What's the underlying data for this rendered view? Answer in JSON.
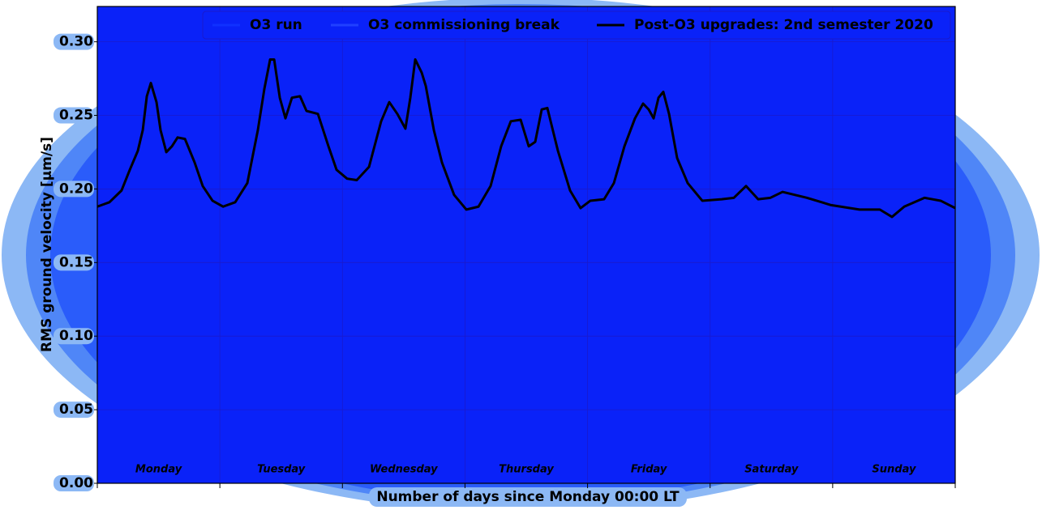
{
  "chart_data": {
    "type": "line",
    "xlabel": "Number of days since Monday 00:00 LT",
    "ylabel": "RMS ground velocity [μm/s]",
    "xlim": [
      0,
      7
    ],
    "ylim": [
      0,
      0.324
    ],
    "xticks": [
      0,
      1,
      2,
      3,
      4,
      5,
      6,
      7
    ],
    "yticks": [
      {
        "value": 0,
        "label": "0.00"
      },
      {
        "value": 0.05,
        "label": "0.05"
      },
      {
        "value": 0.1,
        "label": "0.10"
      },
      {
        "value": 0.15,
        "label": "0.15"
      },
      {
        "value": 0.2,
        "label": "0.20"
      },
      {
        "value": 0.25,
        "label": "0.25"
      },
      {
        "value": 0.3,
        "label": "0.30"
      }
    ],
    "grid": true,
    "day_labels": [
      "Monday",
      "Tuesday",
      "Wednesday",
      "Thursday",
      "Friday",
      "Saturday",
      "Sunday"
    ],
    "x": [
      0,
      0.099,
      0.198,
      0.265,
      0.331,
      0.371,
      0.404,
      0.437,
      0.483,
      0.516,
      0.563,
      0.609,
      0.655,
      0.715,
      0.794,
      0.86,
      0.94,
      1.026,
      1.125,
      1.224,
      1.31,
      1.363,
      1.41,
      1.443,
      1.489,
      1.535,
      1.588,
      1.654,
      1.707,
      1.8,
      1.886,
      1.952,
      2.038,
      2.117,
      2.217,
      2.316,
      2.382,
      2.448,
      2.514,
      2.554,
      2.594,
      2.647,
      2.68,
      2.746,
      2.812,
      2.911,
      3.011,
      3.11,
      3.209,
      3.295,
      3.374,
      3.454,
      3.52,
      3.573,
      3.626,
      3.672,
      3.758,
      3.857,
      3.943,
      4.023,
      4.135,
      4.215,
      4.301,
      4.387,
      4.453,
      4.499,
      4.539,
      4.579,
      4.618,
      4.665,
      4.731,
      4.817,
      4.936,
      5.095,
      5.194,
      5.293,
      5.392,
      5.492,
      5.591,
      5.789,
      5.988,
      6.219,
      6.385,
      6.484,
      6.584,
      6.749,
      6.881,
      7
    ],
    "series": [
      {
        "name": "O3 run",
        "color": "#1030ff"
      },
      {
        "name": "O3 commissioning break",
        "color": "#2040ff"
      },
      {
        "name": "Post-O3 upgrades: 2nd semester 2020",
        "color": "#000000",
        "values": [
          0.188,
          0.191,
          0.199,
          0.213,
          0.226,
          0.24,
          0.263,
          0.272,
          0.259,
          0.24,
          0.225,
          0.229,
          0.235,
          0.234,
          0.218,
          0.202,
          0.192,
          0.188,
          0.191,
          0.204,
          0.24,
          0.268,
          0.288,
          0.288,
          0.262,
          0.248,
          0.262,
          0.263,
          0.253,
          0.251,
          0.229,
          0.213,
          0.207,
          0.206,
          0.215,
          0.246,
          0.259,
          0.251,
          0.241,
          0.262,
          0.288,
          0.279,
          0.27,
          0.24,
          0.218,
          0.196,
          0.186,
          0.188,
          0.202,
          0.229,
          0.246,
          0.247,
          0.229,
          0.232,
          0.254,
          0.255,
          0.226,
          0.199,
          0.187,
          0.192,
          0.193,
          0.204,
          0.229,
          0.248,
          0.258,
          0.254,
          0.248,
          0.262,
          0.266,
          0.251,
          0.221,
          0.204,
          0.192,
          0.193,
          0.194,
          0.202,
          0.193,
          0.194,
          0.198,
          0.194,
          0.189,
          0.186,
          0.186,
          0.181,
          0.188,
          0.194,
          0.192,
          0.187
        ]
      }
    ]
  }
}
